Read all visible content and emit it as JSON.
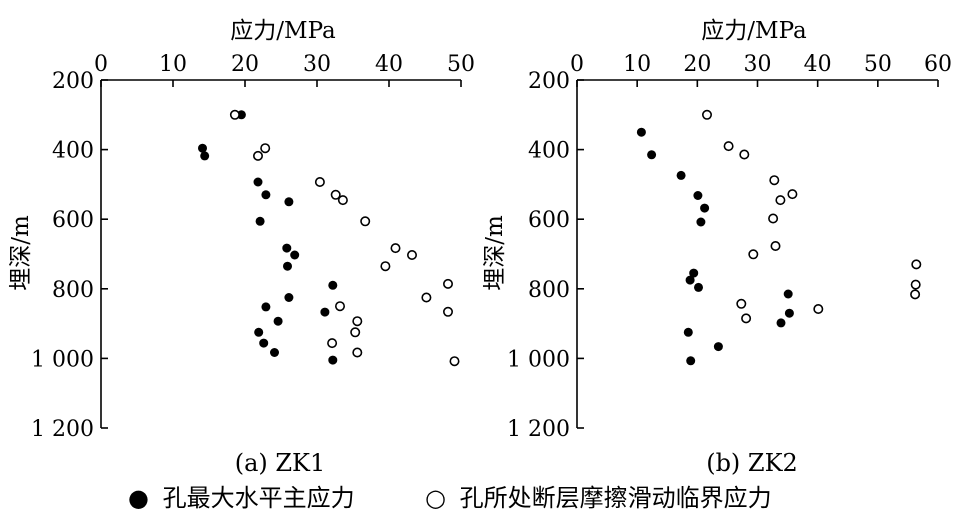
{
  "chart_data": [
    {
      "type": "scatter",
      "caption": "(a) ZK1",
      "xlabel": "应力/MPa",
      "ylabel": "埋深/m",
      "xlim": [
        0,
        50
      ],
      "ylim": [
        200,
        1200
      ],
      "y_inverted": true,
      "x_axis_position": "top",
      "xticks": [
        0,
        10,
        20,
        30,
        40,
        50
      ],
      "xtick_labels": [
        "0",
        "10",
        "20",
        "30",
        "40",
        "50"
      ],
      "yticks": [
        200,
        400,
        600,
        800,
        1000,
        1200
      ],
      "ytick_labels": [
        "200",
        "400",
        "600",
        "800",
        "1 000",
        "1 200"
      ],
      "series": [
        {
          "name": "孔最大水平主应力",
          "marker": "filled-circle",
          "points": [
            [
              19.5,
              300
            ],
            [
              14.1,
              396
            ],
            [
              14.4,
              418
            ],
            [
              21.8,
              493
            ],
            [
              22.9,
              530
            ],
            [
              26.1,
              550
            ],
            [
              22.1,
              606
            ],
            [
              25.8,
              683
            ],
            [
              26.9,
              703
            ],
            [
              25.9,
              735
            ],
            [
              32.2,
              790
            ],
            [
              26.1,
              825
            ],
            [
              22.9,
              852
            ],
            [
              31.1,
              867
            ],
            [
              24.6,
              893
            ],
            [
              21.9,
              925
            ],
            [
              22.6,
              956
            ],
            [
              24.1,
              983
            ],
            [
              32.2,
              1005
            ]
          ]
        },
        {
          "name": "孔所处断层摩擦滑动临界应力",
          "marker": "open-circle",
          "points": [
            [
              18.6,
              300
            ],
            [
              22.8,
              396
            ],
            [
              21.8,
              418
            ],
            [
              30.4,
              493
            ],
            [
              32.6,
              530
            ],
            [
              33.6,
              545
            ],
            [
              36.7,
              606
            ],
            [
              40.9,
              683
            ],
            [
              43.2,
              703
            ],
            [
              39.5,
              735
            ],
            [
              48.2,
              786
            ],
            [
              45.2,
              825
            ],
            [
              33.2,
              850
            ],
            [
              48.2,
              866
            ],
            [
              35.6,
              893
            ],
            [
              35.3,
              925
            ],
            [
              32.1,
              956
            ],
            [
              35.6,
              983
            ],
            [
              49.1,
              1008
            ]
          ]
        }
      ]
    },
    {
      "type": "scatter",
      "caption": "(b) ZK2",
      "xlabel": "应力/MPa",
      "ylabel": "埋深/m",
      "xlim": [
        0,
        60
      ],
      "ylim": [
        200,
        1200
      ],
      "y_inverted": true,
      "x_axis_position": "top",
      "xticks": [
        0,
        10,
        20,
        30,
        40,
        50,
        60
      ],
      "xtick_labels": [
        "0",
        "10",
        "20",
        "30",
        "40",
        "50",
        "60"
      ],
      "yticks": [
        200,
        400,
        600,
        800,
        1000,
        1200
      ],
      "ytick_labels": [
        "200",
        "400",
        "600",
        "800",
        "1 000",
        "1 200"
      ],
      "series": [
        {
          "name": "孔最大水平主应力",
          "marker": "filled-circle",
          "points": [
            [
              10.7,
              350
            ],
            [
              12.4,
              415
            ],
            [
              17.3,
              474
            ],
            [
              20.1,
              532
            ],
            [
              21.2,
              568
            ],
            [
              20.6,
              608
            ],
            [
              19.4,
              755
            ],
            [
              18.8,
              775
            ],
            [
              20.2,
              796
            ],
            [
              35.1,
              815
            ],
            [
              35.3,
              870
            ],
            [
              33.9,
              898
            ],
            [
              18.5,
              925
            ],
            [
              23.5,
              966
            ],
            [
              18.9,
              1007
            ]
          ]
        },
        {
          "name": "孔所处断层摩擦滑动临界应力",
          "marker": "open-circle",
          "points": [
            [
              21.6,
              300
            ],
            [
              25.2,
              390
            ],
            [
              27.8,
              414
            ],
            [
              32.8,
              488
            ],
            [
              35.8,
              528
            ],
            [
              33.8,
              545
            ],
            [
              32.6,
              598
            ],
            [
              33.0,
              677
            ],
            [
              29.3,
              701
            ],
            [
              56.4,
              730
            ],
            [
              56.3,
              788
            ],
            [
              56.2,
              816
            ],
            [
              40.1,
              858
            ],
            [
              27.3,
              843
            ],
            [
              28.1,
              885
            ]
          ]
        }
      ]
    }
  ],
  "legend": {
    "position": "bottom",
    "items": [
      {
        "symbol": "●",
        "label": "孔最大水平主应力"
      },
      {
        "symbol": "○",
        "label": "孔所处断层摩擦滑动临界应力"
      }
    ]
  }
}
